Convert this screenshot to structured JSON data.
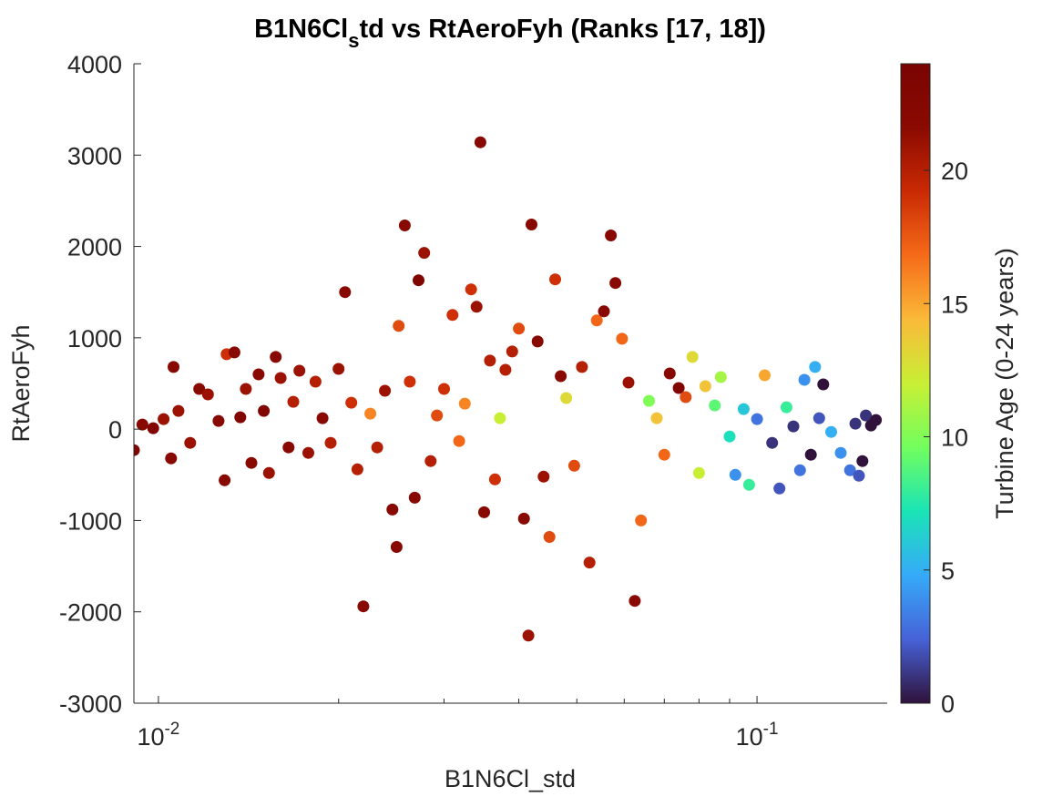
{
  "chart_data": {
    "type": "scatter",
    "title": {
      "prefix": "B1N6Cl",
      "subscript": "s",
      "suffix": "td vs RtAeroFyh (Ranks [17, 18])"
    },
    "xlabel": "B1N6Cl_std",
    "ylabel": "RtAeroFyh",
    "x_scale": "log",
    "xlim": [
      0.0091,
      0.165
    ],
    "ylim": [
      -3000,
      4000
    ],
    "x_ticks": [
      {
        "value": 0.01,
        "base": "10",
        "exp": "-2"
      },
      {
        "value": 0.1,
        "base": "10",
        "exp": "-1"
      }
    ],
    "y_ticks": [
      {
        "value": 4000,
        "label": "4000"
      },
      {
        "value": 3000,
        "label": "3000"
      },
      {
        "value": 2000,
        "label": "2000"
      },
      {
        "value": 1000,
        "label": "1000"
      },
      {
        "value": 0,
        "label": "0"
      },
      {
        "value": -1000,
        "label": "-1000"
      },
      {
        "value": -2000,
        "label": "-2000"
      },
      {
        "value": -3000,
        "label": "-3000"
      }
    ],
    "colorbar": {
      "label": "Turbine Age (0-24 years)",
      "range": [
        0,
        24
      ],
      "ticks": [
        0,
        5,
        10,
        15,
        20
      ],
      "colormap": "turbo"
    },
    "grid": false,
    "points": [
      {
        "x": 0.0091,
        "y": -230,
        "age": 23
      },
      {
        "x": 0.0094,
        "y": 50,
        "age": 22
      },
      {
        "x": 0.0098,
        "y": 10,
        "age": 23
      },
      {
        "x": 0.0102,
        "y": 110,
        "age": 21
      },
      {
        "x": 0.0105,
        "y": -320,
        "age": 22
      },
      {
        "x": 0.0106,
        "y": 680,
        "age": 22
      },
      {
        "x": 0.0108,
        "y": 200,
        "age": 21
      },
      {
        "x": 0.0113,
        "y": -150,
        "age": 21
      },
      {
        "x": 0.0117,
        "y": 440,
        "age": 22
      },
      {
        "x": 0.0121,
        "y": 380,
        "age": 21
      },
      {
        "x": 0.0126,
        "y": 90,
        "age": 22
      },
      {
        "x": 0.0129,
        "y": -560,
        "age": 22
      },
      {
        "x": 0.013,
        "y": 820,
        "age": 19
      },
      {
        "x": 0.0134,
        "y": 840,
        "age": 22
      },
      {
        "x": 0.0137,
        "y": 130,
        "age": 23
      },
      {
        "x": 0.014,
        "y": 440,
        "age": 21
      },
      {
        "x": 0.0143,
        "y": -370,
        "age": 22
      },
      {
        "x": 0.0147,
        "y": 600,
        "age": 22
      },
      {
        "x": 0.015,
        "y": 200,
        "age": 23
      },
      {
        "x": 0.0153,
        "y": -480,
        "age": 21
      },
      {
        "x": 0.0157,
        "y": 790,
        "age": 22
      },
      {
        "x": 0.016,
        "y": 560,
        "age": 21
      },
      {
        "x": 0.0165,
        "y": -200,
        "age": 22
      },
      {
        "x": 0.0168,
        "y": 300,
        "age": 20
      },
      {
        "x": 0.0172,
        "y": 640,
        "age": 21
      },
      {
        "x": 0.0178,
        "y": -260,
        "age": 21
      },
      {
        "x": 0.0183,
        "y": 520,
        "age": 20
      },
      {
        "x": 0.0188,
        "y": 120,
        "age": 22
      },
      {
        "x": 0.0194,
        "y": -150,
        "age": 20
      },
      {
        "x": 0.02,
        "y": 660,
        "age": 21
      },
      {
        "x": 0.0205,
        "y": 1500,
        "age": 22
      },
      {
        "x": 0.021,
        "y": 290,
        "age": 19
      },
      {
        "x": 0.0215,
        "y": -440,
        "age": 20
      },
      {
        "x": 0.022,
        "y": -1940,
        "age": 22
      },
      {
        "x": 0.0226,
        "y": 170,
        "age": 16
      },
      {
        "x": 0.0232,
        "y": -200,
        "age": 20
      },
      {
        "x": 0.0239,
        "y": 420,
        "age": 21
      },
      {
        "x": 0.0246,
        "y": -880,
        "age": 22
      },
      {
        "x": 0.025,
        "y": -1290,
        "age": 22
      },
      {
        "x": 0.0252,
        "y": 1130,
        "age": 18
      },
      {
        "x": 0.0258,
        "y": 2230,
        "age": 22
      },
      {
        "x": 0.0263,
        "y": 520,
        "age": 19
      },
      {
        "x": 0.0268,
        "y": -750,
        "age": 22
      },
      {
        "x": 0.0272,
        "y": 1630,
        "age": 23
      },
      {
        "x": 0.0278,
        "y": 1930,
        "age": 21
      },
      {
        "x": 0.0285,
        "y": -350,
        "age": 20
      },
      {
        "x": 0.0292,
        "y": 150,
        "age": 18
      },
      {
        "x": 0.03,
        "y": 440,
        "age": 19
      },
      {
        "x": 0.031,
        "y": 1250,
        "age": 19
      },
      {
        "x": 0.0318,
        "y": -130,
        "age": 17
      },
      {
        "x": 0.0325,
        "y": 280,
        "age": 16
      },
      {
        "x": 0.0333,
        "y": 1530,
        "age": 19
      },
      {
        "x": 0.034,
        "y": 1340,
        "age": 21
      },
      {
        "x": 0.0345,
        "y": 3140,
        "age": 22
      },
      {
        "x": 0.035,
        "y": -910,
        "age": 22
      },
      {
        "x": 0.0358,
        "y": 750,
        "age": 20
      },
      {
        "x": 0.0365,
        "y": -550,
        "age": 19
      },
      {
        "x": 0.0372,
        "y": 120,
        "age": 12
      },
      {
        "x": 0.038,
        "y": 650,
        "age": 20
      },
      {
        "x": 0.039,
        "y": 850,
        "age": 20
      },
      {
        "x": 0.04,
        "y": 1100,
        "age": 18
      },
      {
        "x": 0.0408,
        "y": -980,
        "age": 22
      },
      {
        "x": 0.0415,
        "y": -2260,
        "age": 21
      },
      {
        "x": 0.042,
        "y": 2240,
        "age": 22
      },
      {
        "x": 0.043,
        "y": 960,
        "age": 22
      },
      {
        "x": 0.044,
        "y": -520,
        "age": 21
      },
      {
        "x": 0.045,
        "y": -1180,
        "age": 18
      },
      {
        "x": 0.046,
        "y": 1640,
        "age": 19
      },
      {
        "x": 0.047,
        "y": 580,
        "age": 22
      },
      {
        "x": 0.048,
        "y": 340,
        "age": 13
      },
      {
        "x": 0.0495,
        "y": -400,
        "age": 18
      },
      {
        "x": 0.051,
        "y": 680,
        "age": 20
      },
      {
        "x": 0.0525,
        "y": -1460,
        "age": 20
      },
      {
        "x": 0.054,
        "y": 1190,
        "age": 17
      },
      {
        "x": 0.0555,
        "y": 1290,
        "age": 22
      },
      {
        "x": 0.057,
        "y": 2120,
        "age": 22
      },
      {
        "x": 0.058,
        "y": 1600,
        "age": 22
      },
      {
        "x": 0.0595,
        "y": 990,
        "age": 17
      },
      {
        "x": 0.061,
        "y": 510,
        "age": 21
      },
      {
        "x": 0.0625,
        "y": -1880,
        "age": 22
      },
      {
        "x": 0.064,
        "y": -1000,
        "age": 17
      },
      {
        "x": 0.066,
        "y": 310,
        "age": 10
      },
      {
        "x": 0.068,
        "y": 120,
        "age": 14
      },
      {
        "x": 0.07,
        "y": -280,
        "age": 17
      },
      {
        "x": 0.0715,
        "y": 610,
        "age": 22
      },
      {
        "x": 0.074,
        "y": 450,
        "age": 23
      },
      {
        "x": 0.076,
        "y": 350,
        "age": 18
      },
      {
        "x": 0.078,
        "y": 790,
        "age": 13
      },
      {
        "x": 0.08,
        "y": -480,
        "age": 12
      },
      {
        "x": 0.082,
        "y": 470,
        "age": 14
      },
      {
        "x": 0.085,
        "y": 260,
        "age": 9
      },
      {
        "x": 0.087,
        "y": 570,
        "age": 11
      },
      {
        "x": 0.09,
        "y": -80,
        "age": 7
      },
      {
        "x": 0.092,
        "y": -500,
        "age": 4
      },
      {
        "x": 0.095,
        "y": 220,
        "age": 6
      },
      {
        "x": 0.097,
        "y": -610,
        "age": 8
      },
      {
        "x": 0.1,
        "y": 110,
        "age": 3
      },
      {
        "x": 0.103,
        "y": 590,
        "age": 15
      },
      {
        "x": 0.106,
        "y": -150,
        "age": 1
      },
      {
        "x": 0.109,
        "y": -650,
        "age": 2
      },
      {
        "x": 0.112,
        "y": 240,
        "age": 8
      },
      {
        "x": 0.115,
        "y": 30,
        "age": 1
      },
      {
        "x": 0.118,
        "y": -450,
        "age": 3
      },
      {
        "x": 0.12,
        "y": 540,
        "age": 4
      },
      {
        "x": 0.123,
        "y": -280,
        "age": 0
      },
      {
        "x": 0.125,
        "y": 680,
        "age": 5
      },
      {
        "x": 0.127,
        "y": 120,
        "age": 2
      },
      {
        "x": 0.129,
        "y": 490,
        "age": 0
      },
      {
        "x": 0.133,
        "y": -30,
        "age": 5
      },
      {
        "x": 0.138,
        "y": -260,
        "age": 4
      },
      {
        "x": 0.143,
        "y": -450,
        "age": 3
      },
      {
        "x": 0.146,
        "y": 60,
        "age": 1
      },
      {
        "x": 0.148,
        "y": -510,
        "age": 2
      },
      {
        "x": 0.15,
        "y": -350,
        "age": 0
      },
      {
        "x": 0.152,
        "y": 150,
        "age": 1
      },
      {
        "x": 0.155,
        "y": 40,
        "age": 0
      },
      {
        "x": 0.158,
        "y": 100,
        "age": 0
      }
    ]
  }
}
